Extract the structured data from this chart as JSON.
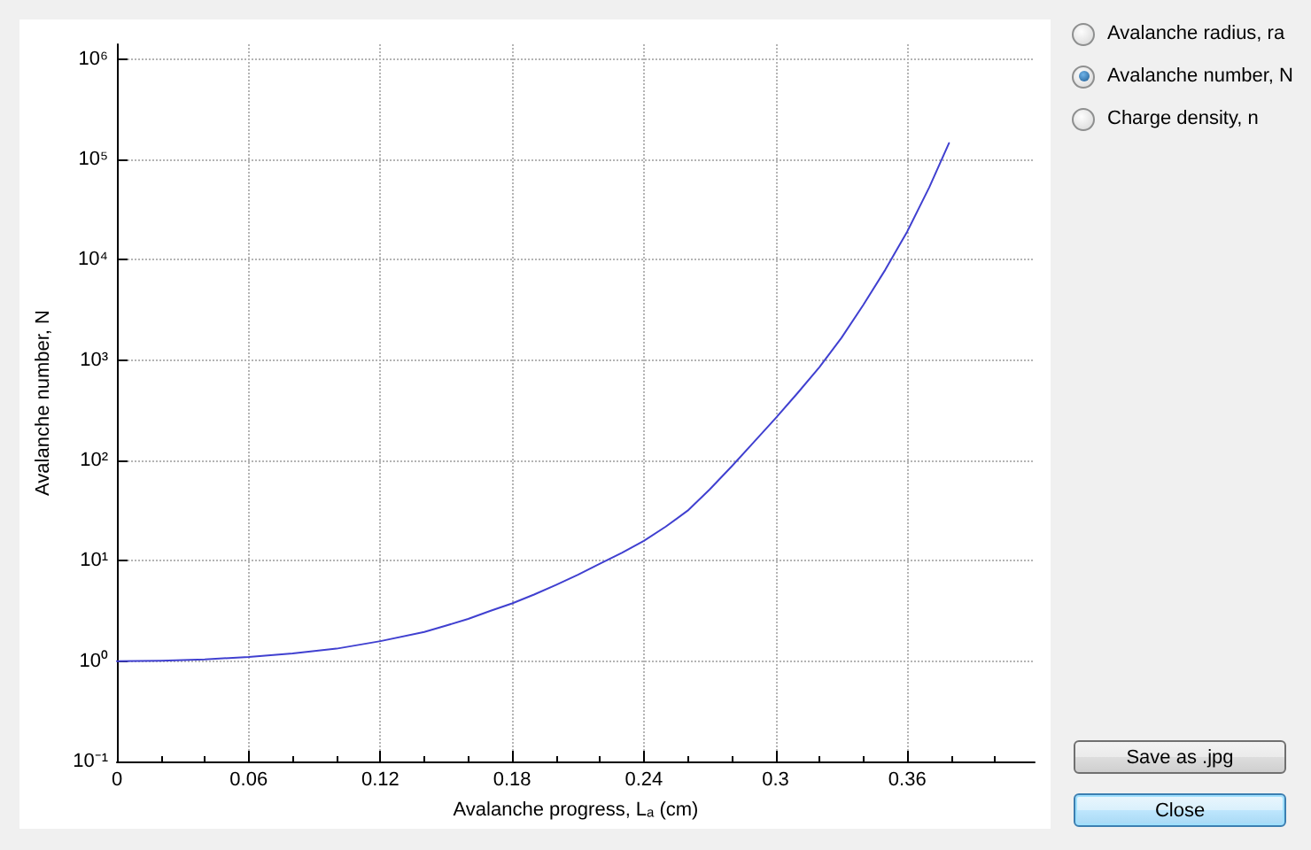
{
  "chart_data": [
    {
      "type": "line",
      "xlabel": "Avalanche progress, Lₐ (cm)",
      "ylabel": "Avalanche number, N",
      "x": [
        0,
        0.02,
        0.04,
        0.06,
        0.08,
        0.1,
        0.12,
        0.14,
        0.15,
        0.16,
        0.17,
        0.18,
        0.19,
        0.2,
        0.21,
        0.22,
        0.23,
        0.24,
        0.25,
        0.26,
        0.27,
        0.28,
        0.29,
        0.3,
        0.31,
        0.32,
        0.33,
        0.34,
        0.35,
        0.36,
        0.37,
        0.379
      ],
      "series": [
        {
          "color": "#4040d0",
          "values": [
            1,
            1.01,
            1.04,
            1.1,
            1.19,
            1.33,
            1.58,
            1.95,
            2.26,
            2.63,
            3.16,
            3.76,
            4.6,
            5.75,
            7.24,
            9.33,
            12,
            15.8,
            21.9,
            31.6,
            51.3,
            87.1,
            151,
            263,
            468,
            851,
            1660,
            3550,
            7940,
            19100,
            52500,
            145000
          ]
        }
      ],
      "xlim": [
        0,
        0.418
      ],
      "ylim": [
        0.1,
        1400000
      ],
      "xticks": [
        0,
        {
          "value": 0.02,
          "label": null
        },
        {
          "value": 0.04,
          "label": null
        },
        0.06,
        {
          "value": 0.08,
          "label": null
        },
        {
          "value": 0.1,
          "label": null
        },
        0.12,
        {
          "value": 0.14,
          "label": null
        },
        {
          "value": 0.16,
          "label": null
        },
        0.18,
        {
          "value": 0.2,
          "label": null
        },
        {
          "value": 0.22,
          "label": null
        },
        0.24,
        {
          "value": 0.26,
          "label": null
        },
        {
          "value": 0.28,
          "label": null
        },
        0.3,
        {
          "value": 0.32,
          "label": null
        },
        {
          "value": 0.34,
          "label": null
        },
        0.36,
        {
          "value": 0.38,
          "label": null
        },
        {
          "value": 0.4,
          "label": null
        }
      ],
      "yticks": [
        {
          "value": 0.1,
          "label": "10⁻¹"
        },
        {
          "value": 1,
          "label": "10⁰"
        },
        {
          "value": 10,
          "label": "10¹"
        },
        {
          "value": 100,
          "label": "10²"
        },
        {
          "value": 1000,
          "label": "10³"
        },
        {
          "value": 10000,
          "label": "10⁴"
        },
        {
          "value": 100000,
          "label": "10⁵"
        },
        {
          "value": 1000000,
          "label": "10⁶"
        }
      ],
      "log": "y",
      "grid": true,
      "marker": "none",
      "line_style": "solid"
    },
    {
      "type": "other",
      "annotations": [
        "Avalanche radius, ra",
        "Avalanche number, N",
        "Charge density, n",
        "Save as .jpg",
        "Close"
      ]
    }
  ]
}
